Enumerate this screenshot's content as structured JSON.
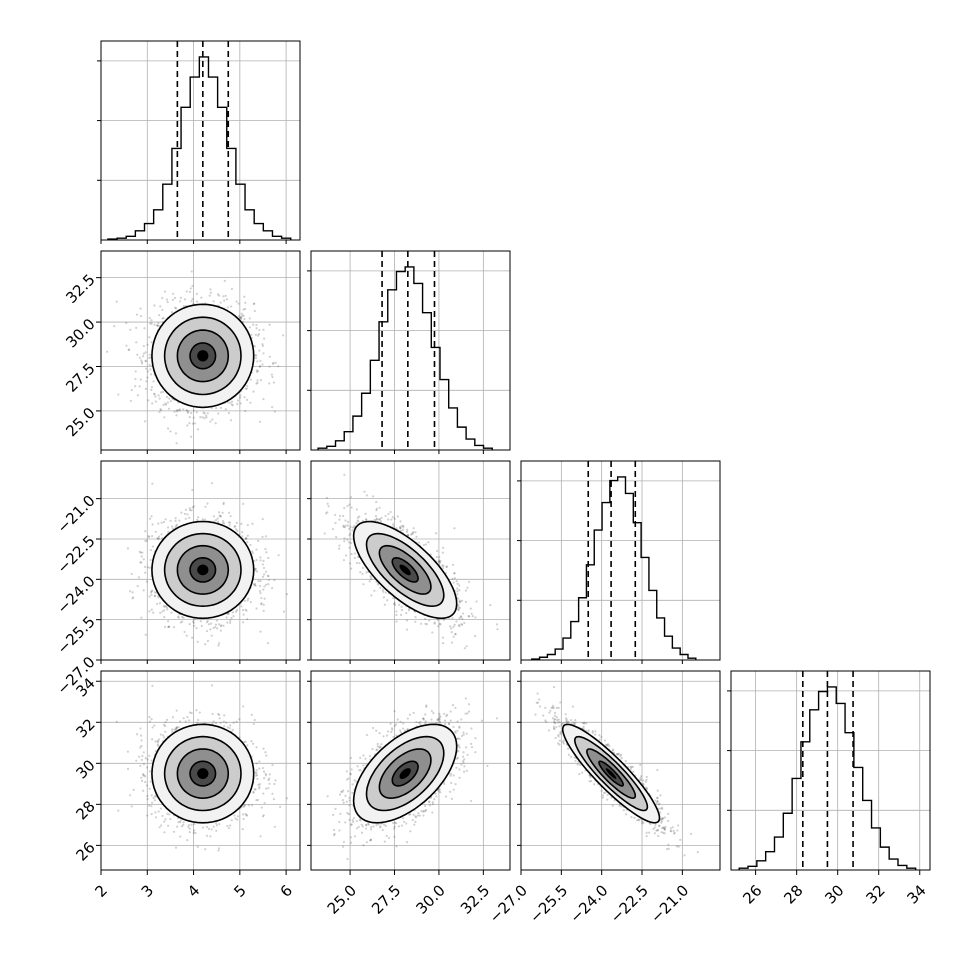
{
  "chart_data": {
    "type": "corner",
    "title": "",
    "variables": [
      {
        "range": [
          2,
          6.3
        ],
        "ticks": [
          2,
          3,
          4,
          5,
          6
        ],
        "tick_labels": [
          "2",
          "3",
          "4",
          "5",
          "6"
        ],
        "quantiles": [
          3.65,
          4.2,
          4.75
        ],
        "hist": {
          "lo": 2.15,
          "hi": 6.1,
          "counts": [
            1,
            2,
            4,
            10,
            18,
            33,
            61,
            100,
            145,
            178,
            200,
            178,
            145,
            100,
            61,
            33,
            18,
            10,
            4,
            2
          ]
        }
      },
      {
        "range": [
          22.8,
          34.0
        ],
        "ticks": [
          25.0,
          27.5,
          30.0,
          32.5
        ],
        "tick_labels": [
          "25.0",
          "27.5",
          "30.0",
          "32.5"
        ],
        "quantiles": [
          26.8,
          28.25,
          29.75
        ],
        "hist": {
          "lo": 23.2,
          "hi": 33.0,
          "counts": [
            2,
            4,
            10,
            20,
            37,
            62,
            98,
            140,
            175,
            195,
            200,
            182,
            150,
            112,
            77,
            46,
            25,
            12,
            5,
            2
          ]
        }
      },
      {
        "range": [
          -27.0,
          -19.6
        ],
        "ticks": [
          -27.0,
          -25.5,
          -24.0,
          -22.5,
          -21.0
        ],
        "tick_labels": [
          "−27.0",
          "−25.5",
          "−24.0",
          "−22.5",
          "−21.0"
        ],
        "quantiles": [
          -24.5,
          -23.65,
          -22.75
        ],
        "hist": {
          "lo": -26.6,
          "hi": -20.5,
          "counts": [
            1,
            3,
            6,
            12,
            24,
            42,
            68,
            104,
            142,
            172,
            196,
            200,
            182,
            150,
            112,
            76,
            46,
            26,
            13,
            6,
            2
          ]
        }
      },
      {
        "range": [
          24.8,
          34.5
        ],
        "ticks": [
          26,
          28,
          30,
          32,
          34
        ],
        "tick_labels": [
          "26",
          "28",
          "30",
          "32",
          "34"
        ],
        "quantiles": [
          28.3,
          29.5,
          30.75
        ],
        "hist": {
          "lo": 25.2,
          "hi": 33.8,
          "counts": [
            2,
            4,
            10,
            20,
            36,
            62,
            100,
            140,
            175,
            195,
            200,
            182,
            150,
            112,
            76,
            46,
            25,
            12,
            5,
            2
          ]
        }
      }
    ],
    "pairs": [
      {
        "row": 1,
        "col": 0,
        "mean": [
          4.2,
          28.1
        ],
        "sd": [
          0.55,
          1.45
        ],
        "corr": 0.0
      },
      {
        "row": 2,
        "col": 0,
        "mean": [
          4.2,
          -23.65
        ],
        "sd": [
          0.55,
          0.9
        ],
        "corr": 0.0
      },
      {
        "row": 2,
        "col": 1,
        "mean": [
          28.1,
          -23.65
        ],
        "sd": [
          1.45,
          0.9
        ],
        "corr": -0.7
      },
      {
        "row": 3,
        "col": 0,
        "mean": [
          4.2,
          29.5
        ],
        "sd": [
          0.55,
          1.2
        ],
        "corr": 0.0
      },
      {
        "row": 3,
        "col": 1,
        "mean": [
          28.1,
          29.5
        ],
        "sd": [
          1.45,
          1.2
        ],
        "corr": 0.55
      },
      {
        "row": 3,
        "col": 2,
        "mean": [
          -23.65,
          29.5
        ],
        "sd": [
          0.9,
          1.2
        ],
        "corr": -0.9
      }
    ],
    "contour_levels_sigma": [
      0.5,
      1.0,
      1.5,
      2.0
    ],
    "grid": true,
    "colors": {
      "line": "#000000",
      "density_dark": "#000000",
      "scatter": "#555555",
      "grid": "#b0b0b0"
    }
  }
}
